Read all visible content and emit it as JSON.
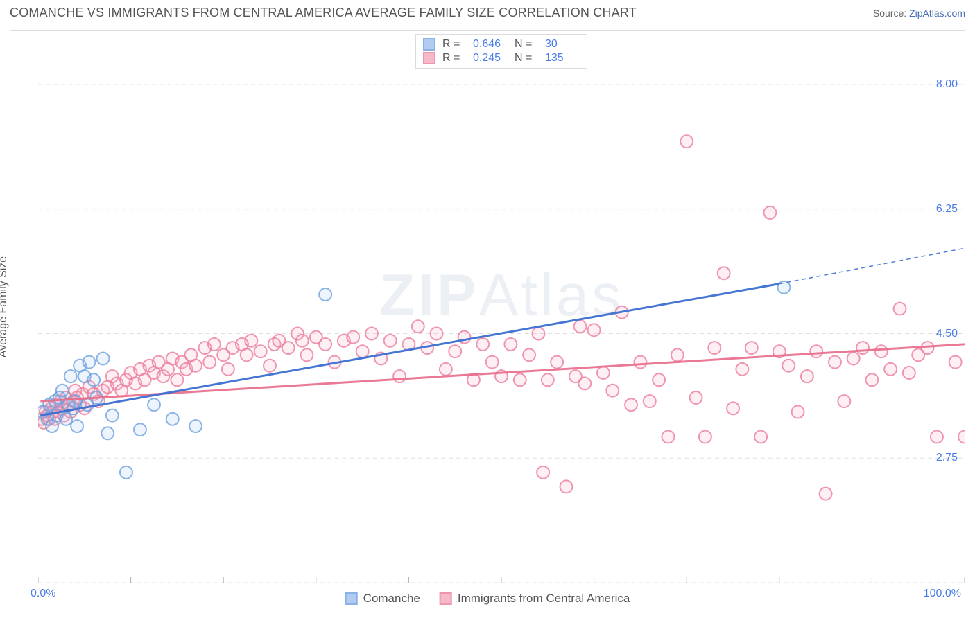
{
  "title": "COMANCHE VS IMMIGRANTS FROM CENTRAL AMERICA AVERAGE FAMILY SIZE CORRELATION CHART",
  "source_label": "Source: ",
  "source_link": "ZipAtlas.com",
  "y_axis_label": "Average Family Size",
  "watermark": {
    "bold": "ZIP",
    "rest": "Atlas"
  },
  "chart": {
    "type": "scatter-with-trendlines",
    "xlim": [
      0,
      100
    ],
    "ylim": [
      1.0,
      8.75
    ],
    "x_ticks": [
      0,
      10,
      20,
      30,
      40,
      50,
      60,
      70,
      80,
      90,
      100
    ],
    "y_grid": [
      1.0,
      2.75,
      4.5,
      6.25,
      8.0
    ],
    "y_tick_labels": [
      "2.75",
      "4.50",
      "6.25",
      "8.00"
    ],
    "y_tick_values": [
      2.75,
      4.5,
      6.25,
      8.0
    ],
    "x_tick_left": "0.0%",
    "x_tick_right": "100.0%",
    "background_color": "#ffffff",
    "grid_color": "#e0e0e0",
    "grid_dash": "6,5",
    "border_box_color": "#dcdcdc",
    "marker_radius": 9,
    "marker_stroke_width": 2,
    "marker_fill_opacity": 0.18,
    "series": [
      {
        "key": "comanche",
        "label": "Comanche",
        "color_stroke": "#6ea0e0",
        "color_fill": "#9ec0ed",
        "r": 0.646,
        "n": 30,
        "trend": {
          "x1": 0.25,
          "y1": 3.35,
          "x2_solid": 80,
          "y2_solid": 5.2,
          "x2_dash": 100,
          "y2_dash": 5.7,
          "color": "#3b6fd1",
          "width": 3
        },
        "trend_color": "#3b6fd1",
        "points": [
          [
            0.5,
            3.4
          ],
          [
            1,
            3.3
          ],
          [
            1.2,
            3.5
          ],
          [
            1.5,
            3.2
          ],
          [
            1.8,
            3.55
          ],
          [
            2,
            3.35
          ],
          [
            2.3,
            3.6
          ],
          [
            2.6,
            3.7
          ],
          [
            3,
            3.3
          ],
          [
            3.3,
            3.5
          ],
          [
            3.5,
            3.9
          ],
          [
            3.8,
            3.45
          ],
          [
            4,
            3.55
          ],
          [
            4.2,
            3.2
          ],
          [
            4.5,
            4.05
          ],
          [
            5,
            3.9
          ],
          [
            5.3,
            3.5
          ],
          [
            5.5,
            4.1
          ],
          [
            6,
            3.85
          ],
          [
            6.3,
            3.6
          ],
          [
            7,
            4.15
          ],
          [
            7.5,
            3.1
          ],
          [
            8,
            3.35
          ],
          [
            9.5,
            2.55
          ],
          [
            11,
            3.15
          ],
          [
            12.5,
            3.5
          ],
          [
            14.5,
            3.3
          ],
          [
            17,
            3.2
          ],
          [
            31,
            5.05
          ],
          [
            80.5,
            5.15
          ]
        ]
      },
      {
        "key": "immigrants",
        "label": "Immigrants from Central America",
        "color_stroke": "#eb7d9b",
        "color_fill": "#f4a8bd",
        "r": 0.245,
        "n": 135,
        "trend": {
          "x1": 0.25,
          "y1": 3.55,
          "x2_solid": 100,
          "y2_solid": 4.35,
          "color": "#e86a8a",
          "width": 3
        },
        "trend_color": "#e86a8a",
        "points": [
          [
            0.4,
            3.3
          ],
          [
            0.6,
            3.25
          ],
          [
            0.8,
            3.4
          ],
          [
            1,
            3.35
          ],
          [
            1.2,
            3.3
          ],
          [
            1.4,
            3.45
          ],
          [
            1.6,
            3.4
          ],
          [
            1.8,
            3.3
          ],
          [
            2,
            3.5
          ],
          [
            2.2,
            3.4
          ],
          [
            2.4,
            3.55
          ],
          [
            2.6,
            3.45
          ],
          [
            2.8,
            3.35
          ],
          [
            3,
            3.6
          ],
          [
            3.2,
            3.5
          ],
          [
            3.5,
            3.4
          ],
          [
            3.8,
            3.55
          ],
          [
            4,
            3.7
          ],
          [
            4.2,
            3.6
          ],
          [
            4.5,
            3.5
          ],
          [
            4.8,
            3.65
          ],
          [
            5,
            3.45
          ],
          [
            5.5,
            3.75
          ],
          [
            6,
            3.65
          ],
          [
            6.5,
            3.55
          ],
          [
            7,
            3.7
          ],
          [
            7.5,
            3.75
          ],
          [
            8,
            3.9
          ],
          [
            8.5,
            3.8
          ],
          [
            9,
            3.7
          ],
          [
            9.5,
            3.85
          ],
          [
            10,
            3.95
          ],
          [
            10.5,
            3.8
          ],
          [
            11,
            4.0
          ],
          [
            11.5,
            3.85
          ],
          [
            12,
            4.05
          ],
          [
            12.5,
            3.95
          ],
          [
            13,
            4.1
          ],
          [
            13.5,
            3.9
          ],
          [
            14,
            4.0
          ],
          [
            14.5,
            4.15
          ],
          [
            15,
            3.85
          ],
          [
            15.5,
            4.1
          ],
          [
            16,
            4.0
          ],
          [
            16.5,
            4.2
          ],
          [
            17,
            4.05
          ],
          [
            18,
            4.3
          ],
          [
            18.5,
            4.1
          ],
          [
            19,
            4.35
          ],
          [
            20,
            4.2
          ],
          [
            20.5,
            4.0
          ],
          [
            21,
            4.3
          ],
          [
            22,
            4.35
          ],
          [
            22.5,
            4.2
          ],
          [
            23,
            4.4
          ],
          [
            24,
            4.25
          ],
          [
            25,
            4.05
          ],
          [
            25.5,
            4.35
          ],
          [
            26,
            4.4
          ],
          [
            27,
            4.3
          ],
          [
            28,
            4.5
          ],
          [
            28.5,
            4.4
          ],
          [
            29,
            4.2
          ],
          [
            30,
            4.45
          ],
          [
            31,
            4.35
          ],
          [
            32,
            4.1
          ],
          [
            33,
            4.4
          ],
          [
            34,
            4.45
          ],
          [
            35,
            4.25
          ],
          [
            36,
            4.5
          ],
          [
            37,
            4.15
          ],
          [
            38,
            4.4
          ],
          [
            39,
            3.9
          ],
          [
            40,
            4.35
          ],
          [
            41,
            4.6
          ],
          [
            42,
            4.3
          ],
          [
            43,
            4.5
          ],
          [
            44,
            4.0
          ],
          [
            45,
            4.25
          ],
          [
            46,
            4.45
          ],
          [
            47,
            3.85
          ],
          [
            48,
            4.35
          ],
          [
            49,
            4.1
          ],
          [
            50,
            3.9
          ],
          [
            51,
            4.35
          ],
          [
            52,
            3.85
          ],
          [
            53,
            4.2
          ],
          [
            54,
            4.5
          ],
          [
            54.5,
            2.55
          ],
          [
            55,
            3.85
          ],
          [
            56,
            4.1
          ],
          [
            57,
            2.35
          ],
          [
            58,
            3.9
          ],
          [
            58.5,
            4.6
          ],
          [
            59,
            3.8
          ],
          [
            60,
            4.55
          ],
          [
            61,
            3.95
          ],
          [
            62,
            3.7
          ],
          [
            63,
            4.8
          ],
          [
            64,
            3.5
          ],
          [
            65,
            4.1
          ],
          [
            66,
            3.55
          ],
          [
            67,
            3.85
          ],
          [
            68,
            3.05
          ],
          [
            69,
            4.2
          ],
          [
            70,
            7.2
          ],
          [
            71,
            3.6
          ],
          [
            72,
            3.05
          ],
          [
            73,
            4.3
          ],
          [
            74,
            5.35
          ],
          [
            75,
            3.45
          ],
          [
            76,
            4.0
          ],
          [
            77,
            4.3
          ],
          [
            78,
            3.05
          ],
          [
            79,
            6.2
          ],
          [
            80,
            4.25
          ],
          [
            81,
            4.05
          ],
          [
            82,
            3.4
          ],
          [
            83,
            3.9
          ],
          [
            84,
            4.25
          ],
          [
            85,
            2.25
          ],
          [
            86,
            4.1
          ],
          [
            87,
            3.55
          ],
          [
            88,
            4.15
          ],
          [
            89,
            4.3
          ],
          [
            90,
            3.85
          ],
          [
            91,
            4.25
          ],
          [
            92,
            4.0
          ],
          [
            93,
            4.85
          ],
          [
            94,
            3.95
          ],
          [
            95,
            4.2
          ],
          [
            96,
            4.3
          ],
          [
            97,
            3.05
          ],
          [
            99,
            4.1
          ],
          [
            100,
            3.05
          ]
        ]
      }
    ]
  }
}
